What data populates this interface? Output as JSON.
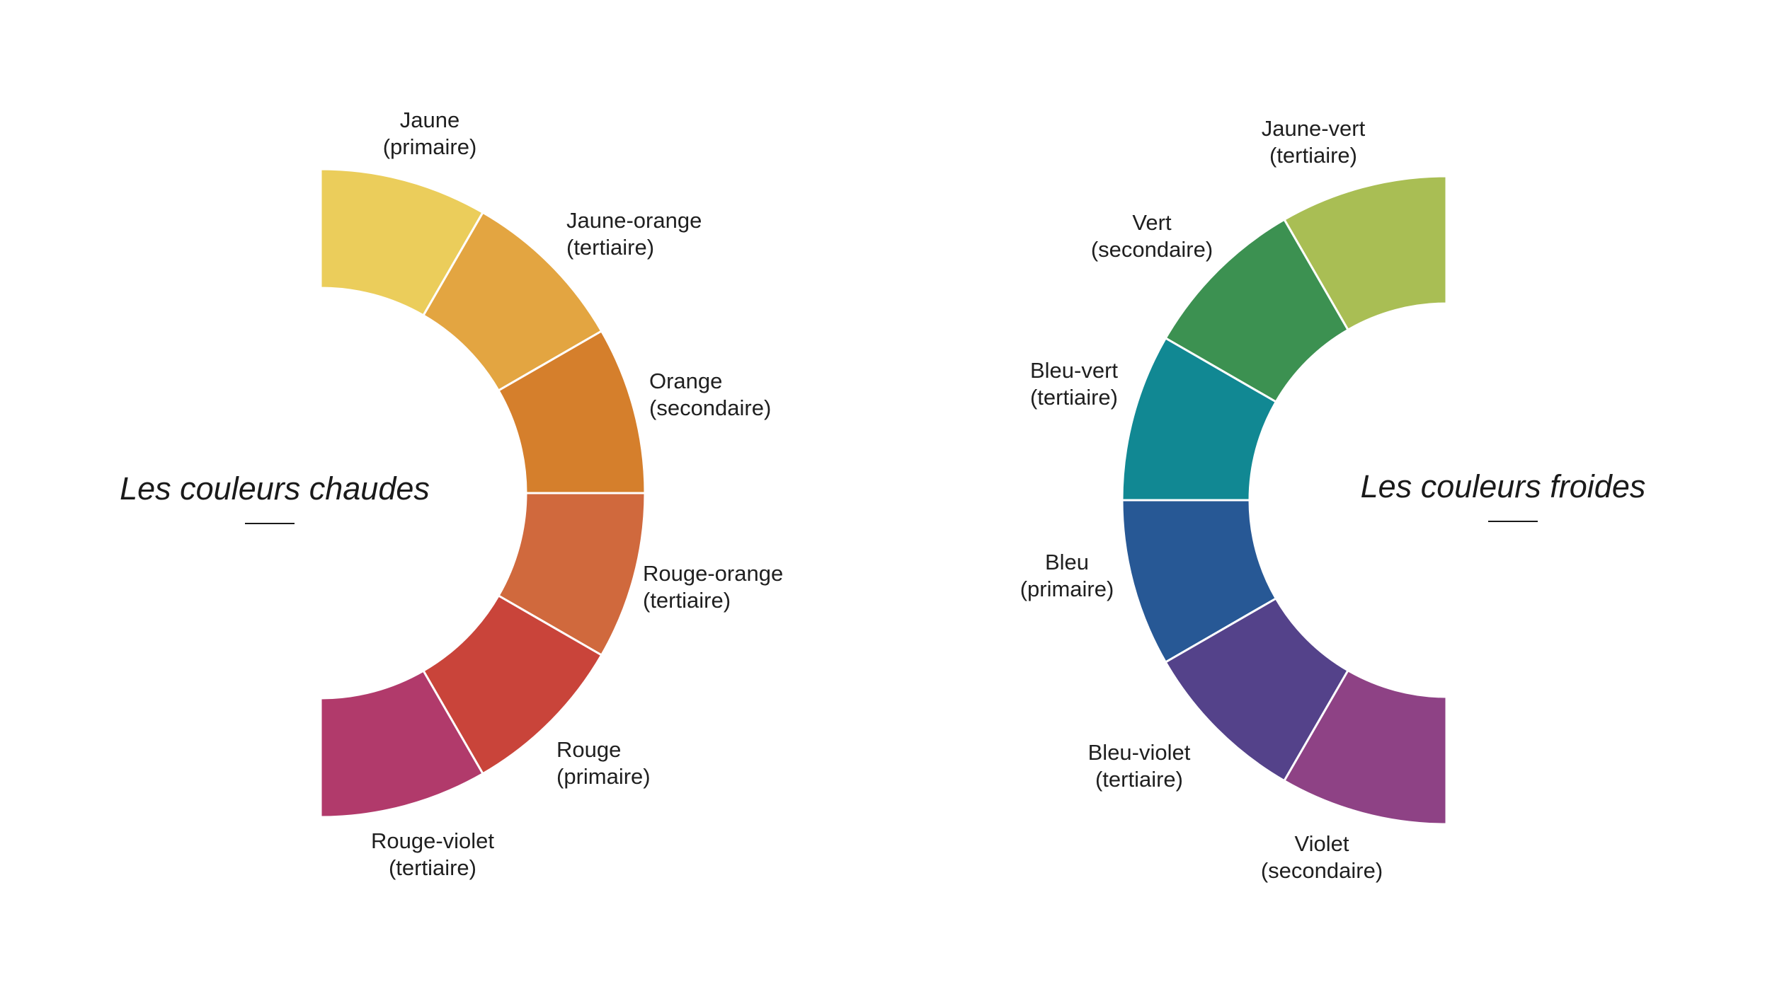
{
  "diagrams": [
    {
      "id": "warm",
      "title": "Les couleurs chaudes",
      "segments": [
        {
          "name": "Jaune",
          "kind": "(primaire)",
          "color": "#EBCD5B"
        },
        {
          "name": "Jaune-orange",
          "kind": "(tertiaire)",
          "color": "#E3A541"
        },
        {
          "name": "Orange",
          "kind": "(secondaire)",
          "color": "#D57F2C"
        },
        {
          "name": "Rouge-orange",
          "kind": "(tertiaire)",
          "color": "#D0693D"
        },
        {
          "name": "Rouge",
          "kind": "(primaire)",
          "color": "#C9443A"
        },
        {
          "name": "Rouge-violet",
          "kind": "(tertiaire)",
          "color": "#B13A6B"
        }
      ]
    },
    {
      "id": "cool",
      "title": "Les couleurs froides",
      "segments": [
        {
          "name": "Jaune-vert",
          "kind": "(tertiaire)",
          "color": "#A9BE54"
        },
        {
          "name": "Vert",
          "kind": "(secondaire)",
          "color": "#3C9151"
        },
        {
          "name": "Bleu-vert",
          "kind": "(tertiaire)",
          "color": "#118893"
        },
        {
          "name": "Bleu",
          "kind": "(primaire)",
          "color": "#275895"
        },
        {
          "name": "Bleu-violet",
          "kind": "(tertiaire)",
          "color": "#54428A"
        },
        {
          "name": "Violet",
          "kind": "(secondaire)",
          "color": "#8E4285"
        }
      ]
    }
  ]
}
